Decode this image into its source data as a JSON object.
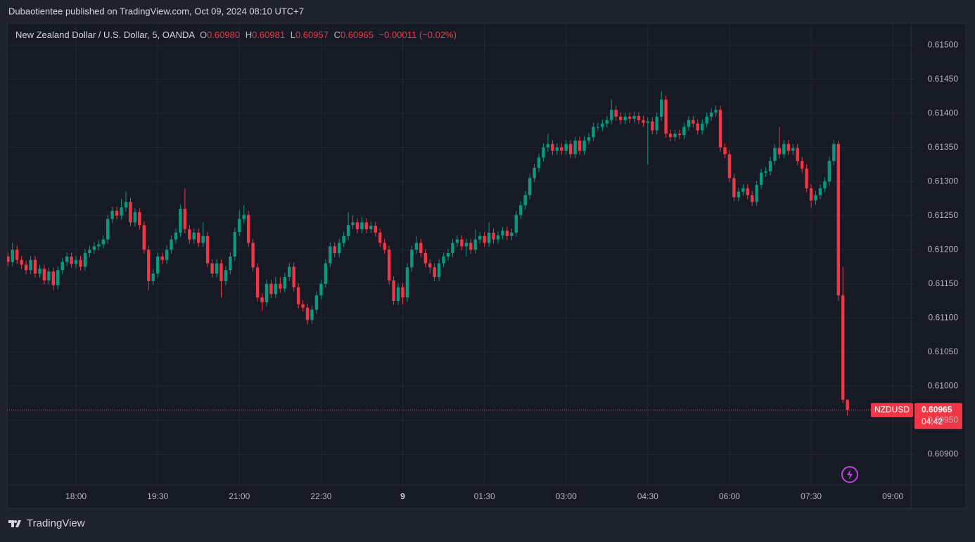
{
  "header": {
    "text": "Dubaotientee published on TradingView.com, Oct 09, 2024 08:10 UTC+7"
  },
  "footer": {
    "brand": "TradingView"
  },
  "chart_data": {
    "type": "candlestick",
    "legend": {
      "symbol": "New Zealand Dollar / U.S. Dollar, 5, OANDA",
      "o": "O",
      "open": "0.60980",
      "h": "H",
      "high": "0.60981",
      "l": "L",
      "low": "0.60957",
      "c": "C",
      "close": "0.60965",
      "change": "−0.00011 (−0.02%)"
    },
    "tag": {
      "symbol": "NZDUSD",
      "price": "0.60965",
      "countdown": "04:42"
    },
    "up_color": "#089981",
    "down_color": "#f23645",
    "grid": true,
    "xlim": [
      0.8,
      200
    ],
    "ylim": [
      0.60855,
      0.61531
    ],
    "xticks": [
      {
        "value": 16,
        "label": "18:00"
      },
      {
        "value": 34,
        "label": "19:30"
      },
      {
        "value": 52,
        "label": "21:00"
      },
      {
        "value": 70,
        "label": "22:30"
      },
      {
        "value": 88,
        "label": "9"
      },
      {
        "value": 106,
        "label": "01:30"
      },
      {
        "value": 124,
        "label": "03:00"
      },
      {
        "value": 142,
        "label": "04:30"
      },
      {
        "value": 160,
        "label": "06:00"
      },
      {
        "value": 178,
        "label": "07:30"
      },
      {
        "value": 196,
        "label": "09:00"
      }
    ],
    "yticks": [
      {
        "value": 0.609,
        "label": "0.60900"
      },
      {
        "value": 0.6095,
        "label": "0.60950"
      },
      {
        "value": 0.61,
        "label": "0.61000"
      },
      {
        "value": 0.6105,
        "label": "0.61050"
      },
      {
        "value": 0.611,
        "label": "0.61100"
      },
      {
        "value": 0.6115,
        "label": "0.61150"
      },
      {
        "value": 0.612,
        "label": "0.61200"
      },
      {
        "value": 0.6125,
        "label": "0.61250"
      },
      {
        "value": 0.613,
        "label": "0.61300"
      },
      {
        "value": 0.6135,
        "label": "0.61350"
      },
      {
        "value": 0.614,
        "label": "0.61400"
      },
      {
        "value": 0.6145,
        "label": "0.61450"
      },
      {
        "value": 0.615,
        "label": "0.61500"
      }
    ],
    "ohlc": [
      [
        0.6118,
        0.61205,
        0.6117,
        0.6119
      ],
      [
        0.6119,
        0.61196,
        0.61176,
        0.61182
      ],
      [
        0.61182,
        0.6121,
        0.61176,
        0.612
      ],
      [
        0.612,
        0.61206,
        0.61179,
        0.61185
      ],
      [
        0.61185,
        0.61191,
        0.61172,
        0.61178
      ],
      [
        0.61178,
        0.61184,
        0.61164,
        0.6117
      ],
      [
        0.6117,
        0.61191,
        0.61164,
        0.61185
      ],
      [
        0.61185,
        0.61191,
        0.61159,
        0.61165
      ],
      [
        0.61165,
        0.61178,
        0.61159,
        0.61172
      ],
      [
        0.61172,
        0.61178,
        0.61149,
        0.61155
      ],
      [
        0.61155,
        0.61174,
        0.61149,
        0.61168
      ],
      [
        0.61168,
        0.61174,
        0.6114,
        0.61148
      ],
      [
        0.61148,
        0.61176,
        0.61142,
        0.6117
      ],
      [
        0.6117,
        0.61188,
        0.61164,
        0.61182
      ],
      [
        0.61182,
        0.61196,
        0.61176,
        0.6119
      ],
      [
        0.6119,
        0.61196,
        0.61173,
        0.61179
      ],
      [
        0.61179,
        0.61191,
        0.61173,
        0.61185
      ],
      [
        0.61185,
        0.61191,
        0.61169,
        0.61175
      ],
      [
        0.61175,
        0.61201,
        0.61169,
        0.61195
      ],
      [
        0.61195,
        0.61206,
        0.61189,
        0.612
      ],
      [
        0.612,
        0.61211,
        0.61194,
        0.61205
      ],
      [
        0.61205,
        0.61214,
        0.61199,
        0.61208
      ],
      [
        0.61208,
        0.61221,
        0.61202,
        0.61215
      ],
      [
        0.61215,
        0.61251,
        0.61209,
        0.61245
      ],
      [
        0.61245,
        0.61263,
        0.61239,
        0.61257
      ],
      [
        0.61257,
        0.61263,
        0.61244,
        0.6125
      ],
      [
        0.6125,
        0.61275,
        0.61244,
        0.61262
      ],
      [
        0.61262,
        0.61285,
        0.61256,
        0.6127
      ],
      [
        0.6127,
        0.61276,
        0.61234,
        0.6124
      ],
      [
        0.6124,
        0.61261,
        0.61234,
        0.61255
      ],
      [
        0.61255,
        0.61261,
        0.6123,
        0.61236
      ],
      [
        0.61236,
        0.61242,
        0.61194,
        0.612
      ],
      [
        0.612,
        0.61206,
        0.6114,
        0.61154
      ],
      [
        0.61154,
        0.61171,
        0.61148,
        0.61165
      ],
      [
        0.61165,
        0.61196,
        0.61159,
        0.6119
      ],
      [
        0.6119,
        0.61196,
        0.61179,
        0.61185
      ],
      [
        0.61185,
        0.61206,
        0.61179,
        0.612
      ],
      [
        0.612,
        0.61221,
        0.61194,
        0.61215
      ],
      [
        0.61215,
        0.61231,
        0.61209,
        0.61225
      ],
      [
        0.61225,
        0.61266,
        0.61219,
        0.6126
      ],
      [
        0.6126,
        0.6129,
        0.61224,
        0.6123
      ],
      [
        0.6123,
        0.61236,
        0.61209,
        0.61215
      ],
      [
        0.61215,
        0.61231,
        0.61209,
        0.61225
      ],
      [
        0.61225,
        0.61231,
        0.61204,
        0.6121
      ],
      [
        0.6121,
        0.6124,
        0.61204,
        0.6122
      ],
      [
        0.6122,
        0.61226,
        0.61174,
        0.6118
      ],
      [
        0.6118,
        0.61186,
        0.61159,
        0.61165
      ],
      [
        0.61165,
        0.61186,
        0.61159,
        0.6118
      ],
      [
        0.6118,
        0.61186,
        0.6113,
        0.61154
      ],
      [
        0.61154,
        0.61176,
        0.61148,
        0.6117
      ],
      [
        0.6117,
        0.61196,
        0.61164,
        0.6119
      ],
      [
        0.6119,
        0.61232,
        0.61184,
        0.61226
      ],
      [
        0.61226,
        0.61258,
        0.6122,
        0.61245
      ],
      [
        0.61245,
        0.61265,
        0.61239,
        0.61251
      ],
      [
        0.61251,
        0.61257,
        0.61204,
        0.6121
      ],
      [
        0.6121,
        0.61216,
        0.61168,
        0.61174
      ],
      [
        0.61174,
        0.6118,
        0.61124,
        0.6113
      ],
      [
        0.6113,
        0.61136,
        0.6111,
        0.61123
      ],
      [
        0.61123,
        0.61156,
        0.61117,
        0.6115
      ],
      [
        0.6115,
        0.61156,
        0.61129,
        0.61135
      ],
      [
        0.61135,
        0.6116,
        0.61129,
        0.6115
      ],
      [
        0.6115,
        0.6116,
        0.61137,
        0.61143
      ],
      [
        0.61143,
        0.61166,
        0.61137,
        0.6116
      ],
      [
        0.6116,
        0.61181,
        0.61154,
        0.61175
      ],
      [
        0.61175,
        0.61181,
        0.61139,
        0.61145
      ],
      [
        0.61145,
        0.61151,
        0.61114,
        0.6112
      ],
      [
        0.6112,
        0.61126,
        0.61109,
        0.61115
      ],
      [
        0.61115,
        0.61121,
        0.6109,
        0.61097
      ],
      [
        0.61097,
        0.61118,
        0.61091,
        0.61112
      ],
      [
        0.61112,
        0.61139,
        0.61106,
        0.61133
      ],
      [
        0.61133,
        0.61156,
        0.61127,
        0.6115
      ],
      [
        0.6115,
        0.61186,
        0.61144,
        0.6118
      ],
      [
        0.6118,
        0.61211,
        0.61174,
        0.61205
      ],
      [
        0.61205,
        0.61211,
        0.61189,
        0.61195
      ],
      [
        0.61195,
        0.61216,
        0.61189,
        0.6121
      ],
      [
        0.6121,
        0.61226,
        0.61204,
        0.6122
      ],
      [
        0.6122,
        0.61255,
        0.61214,
        0.61236
      ],
      [
        0.61236,
        0.6125,
        0.6123,
        0.6124
      ],
      [
        0.6124,
        0.61246,
        0.61224,
        0.6123
      ],
      [
        0.6123,
        0.61248,
        0.61224,
        0.6124
      ],
      [
        0.6124,
        0.61246,
        0.61224,
        0.6123
      ],
      [
        0.6123,
        0.61241,
        0.61224,
        0.61235
      ],
      [
        0.61235,
        0.61241,
        0.61219,
        0.61225
      ],
      [
        0.61225,
        0.61231,
        0.61204,
        0.6121
      ],
      [
        0.6121,
        0.61216,
        0.61194,
        0.612
      ],
      [
        0.612,
        0.61206,
        0.61149,
        0.61155
      ],
      [
        0.61155,
        0.61161,
        0.61119,
        0.61125
      ],
      [
        0.61125,
        0.61151,
        0.61119,
        0.61145
      ],
      [
        0.61145,
        0.61151,
        0.6112,
        0.6113
      ],
      [
        0.6113,
        0.6118,
        0.61124,
        0.61174
      ],
      [
        0.61174,
        0.61206,
        0.61168,
        0.612
      ],
      [
        0.612,
        0.6122,
        0.61194,
        0.6121
      ],
      [
        0.6121,
        0.61216,
        0.61189,
        0.61195
      ],
      [
        0.61195,
        0.61201,
        0.61174,
        0.6118
      ],
      [
        0.6118,
        0.61186,
        0.61165,
        0.61174
      ],
      [
        0.61174,
        0.6118,
        0.61154,
        0.6116
      ],
      [
        0.6116,
        0.61186,
        0.61154,
        0.6118
      ],
      [
        0.6118,
        0.61196,
        0.61174,
        0.6119
      ],
      [
        0.6119,
        0.61201,
        0.61184,
        0.61195
      ],
      [
        0.61195,
        0.61216,
        0.61189,
        0.6121
      ],
      [
        0.6121,
        0.61221,
        0.61204,
        0.61215
      ],
      [
        0.61215,
        0.61221,
        0.61199,
        0.61205
      ],
      [
        0.61205,
        0.61216,
        0.6119,
        0.6121
      ],
      [
        0.6121,
        0.61216,
        0.61194,
        0.612
      ],
      [
        0.612,
        0.6123,
        0.61194,
        0.61215
      ],
      [
        0.61215,
        0.61226,
        0.61209,
        0.6122
      ],
      [
        0.6122,
        0.61226,
        0.61204,
        0.6121
      ],
      [
        0.6121,
        0.6124,
        0.61204,
        0.61225
      ],
      [
        0.61225,
        0.61231,
        0.61209,
        0.61215
      ],
      [
        0.61215,
        0.61227,
        0.61209,
        0.61221
      ],
      [
        0.61221,
        0.61234,
        0.61215,
        0.61228
      ],
      [
        0.61228,
        0.61234,
        0.61214,
        0.6122
      ],
      [
        0.6122,
        0.61231,
        0.61214,
        0.61225
      ],
      [
        0.61225,
        0.61257,
        0.61219,
        0.61251
      ],
      [
        0.61251,
        0.61271,
        0.61245,
        0.61265
      ],
      [
        0.61265,
        0.61286,
        0.61259,
        0.6128
      ],
      [
        0.6128,
        0.61311,
        0.61274,
        0.61305
      ],
      [
        0.61305,
        0.61326,
        0.61299,
        0.6132
      ],
      [
        0.6132,
        0.61341,
        0.61314,
        0.61335
      ],
      [
        0.61335,
        0.61356,
        0.61329,
        0.6135
      ],
      [
        0.6135,
        0.6137,
        0.61344,
        0.61355
      ],
      [
        0.61355,
        0.61361,
        0.61339,
        0.61345
      ],
      [
        0.61345,
        0.61356,
        0.61339,
        0.6135
      ],
      [
        0.6135,
        0.61356,
        0.61339,
        0.61345
      ],
      [
        0.61345,
        0.61361,
        0.61339,
        0.61355
      ],
      [
        0.61355,
        0.61361,
        0.61334,
        0.6134
      ],
      [
        0.6134,
        0.61366,
        0.61334,
        0.6136
      ],
      [
        0.6136,
        0.61366,
        0.61339,
        0.61345
      ],
      [
        0.61345,
        0.61366,
        0.61339,
        0.6136
      ],
      [
        0.6136,
        0.61371,
        0.61354,
        0.61365
      ],
      [
        0.61365,
        0.61386,
        0.61359,
        0.6138
      ],
      [
        0.6138,
        0.61386,
        0.61374,
        0.6138
      ],
      [
        0.6138,
        0.61391,
        0.61374,
        0.61385
      ],
      [
        0.61385,
        0.61396,
        0.61379,
        0.6139
      ],
      [
        0.6139,
        0.6142,
        0.61384,
        0.61405
      ],
      [
        0.61405,
        0.61411,
        0.61389,
        0.61395
      ],
      [
        0.61395,
        0.61401,
        0.61384,
        0.6139
      ],
      [
        0.6139,
        0.61401,
        0.61384,
        0.61395
      ],
      [
        0.61395,
        0.61401,
        0.61386,
        0.61392
      ],
      [
        0.61392,
        0.61402,
        0.61386,
        0.61396
      ],
      [
        0.61396,
        0.61402,
        0.61384,
        0.6139
      ],
      [
        0.6139,
        0.61396,
        0.6138,
        0.61386
      ],
      [
        0.61386,
        0.61394,
        0.61325,
        0.61388
      ],
      [
        0.61388,
        0.61394,
        0.61369,
        0.61375
      ],
      [
        0.61375,
        0.61401,
        0.61369,
        0.61395
      ],
      [
        0.61395,
        0.61432,
        0.61389,
        0.6142
      ],
      [
        0.6142,
        0.61426,
        0.61364,
        0.6137
      ],
      [
        0.6137,
        0.61376,
        0.61359,
        0.61365
      ],
      [
        0.61365,
        0.61376,
        0.61359,
        0.6137
      ],
      [
        0.6137,
        0.61376,
        0.61362,
        0.61368
      ],
      [
        0.61368,
        0.61386,
        0.61362,
        0.6138
      ],
      [
        0.6138,
        0.61396,
        0.61374,
        0.6139
      ],
      [
        0.6139,
        0.61396,
        0.61379,
        0.61385
      ],
      [
        0.61385,
        0.61391,
        0.61369,
        0.61375
      ],
      [
        0.61375,
        0.61391,
        0.61369,
        0.61385
      ],
      [
        0.61385,
        0.61401,
        0.61379,
        0.61395
      ],
      [
        0.61395,
        0.61407,
        0.61389,
        0.61401
      ],
      [
        0.61401,
        0.61411,
        0.61395,
        0.61405
      ],
      [
        0.61405,
        0.61411,
        0.61344,
        0.6135
      ],
      [
        0.6135,
        0.61356,
        0.61334,
        0.6134
      ],
      [
        0.6134,
        0.61346,
        0.61299,
        0.61305
      ],
      [
        0.61305,
        0.61311,
        0.61271,
        0.61277
      ],
      [
        0.61277,
        0.61291,
        0.61271,
        0.61285
      ],
      [
        0.61285,
        0.61296,
        0.61279,
        0.6129
      ],
      [
        0.6129,
        0.61296,
        0.61274,
        0.6128
      ],
      [
        0.6128,
        0.61286,
        0.61264,
        0.6127
      ],
      [
        0.6127,
        0.61301,
        0.61264,
        0.61295
      ],
      [
        0.61295,
        0.61319,
        0.61289,
        0.61313
      ],
      [
        0.61313,
        0.61321,
        0.61307,
        0.61315
      ],
      [
        0.61315,
        0.61336,
        0.61309,
        0.6133
      ],
      [
        0.6133,
        0.61355,
        0.61324,
        0.61349
      ],
      [
        0.61349,
        0.6138,
        0.61334,
        0.6134
      ],
      [
        0.6134,
        0.61361,
        0.61334,
        0.61355
      ],
      [
        0.61355,
        0.61361,
        0.61339,
        0.61345
      ],
      [
        0.61345,
        0.61355,
        0.61339,
        0.61349
      ],
      [
        0.61349,
        0.61355,
        0.61324,
        0.6133
      ],
      [
        0.6133,
        0.61336,
        0.61313,
        0.61319
      ],
      [
        0.61319,
        0.61325,
        0.61284,
        0.6129
      ],
      [
        0.6129,
        0.61296,
        0.61262,
        0.61272
      ],
      [
        0.61272,
        0.61286,
        0.61266,
        0.6128
      ],
      [
        0.6128,
        0.61296,
        0.61274,
        0.6129
      ],
      [
        0.6129,
        0.61306,
        0.61284,
        0.613
      ],
      [
        0.613,
        0.61336,
        0.61294,
        0.6133
      ],
      [
        0.6133,
        0.61361,
        0.61324,
        0.61355
      ],
      [
        0.61355,
        0.6136,
        0.61125,
        0.61133
      ],
      [
        0.61133,
        0.61175,
        0.60975,
        0.6098
      ],
      [
        0.6098,
        0.60981,
        0.60957,
        0.60965
      ]
    ]
  }
}
